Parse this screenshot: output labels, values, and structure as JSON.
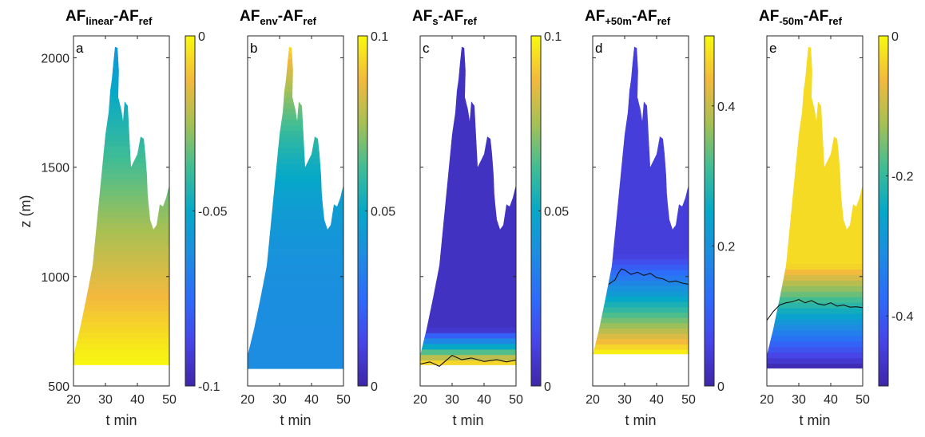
{
  "figure": {
    "ylabel": "z (m)"
  },
  "chart_data": [
    {
      "type": "heatmap",
      "panel": "a",
      "title": "AF",
      "title_sub": "linear",
      "title_tail": "-AF",
      "title_sub2": "ref",
      "xlabel": "t min",
      "ylabel": "z (m)",
      "xlim": [
        20,
        50
      ],
      "ylim": [
        500,
        2100
      ],
      "xticks": [
        20,
        30,
        40,
        50
      ],
      "yticks": [
        500,
        1000,
        1500,
        2000
      ],
      "colorbar": {
        "lim": [
          -0.1,
          0
        ],
        "ticks": [
          -0.1,
          -0.05,
          0
        ],
        "tick_labels": [
          "-0.1",
          "-0.05",
          "0"
        ]
      },
      "value_range": [
        -0.06,
        0
      ],
      "base_z": 595,
      "contour": null
    },
    {
      "type": "heatmap",
      "panel": "b",
      "title": "AF",
      "title_sub": "env",
      "title_tail": "-AF",
      "title_sub2": "ref",
      "xlabel": "t min",
      "xlim": [
        20,
        50
      ],
      "ylim": [
        500,
        2100
      ],
      "xticks": [
        20,
        30,
        40,
        50
      ],
      "yticks": [
        500,
        1000,
        1500,
        2000
      ],
      "colorbar": {
        "lim": [
          0,
          0.1
        ],
        "ticks": [
          0,
          0.05,
          0.1
        ],
        "tick_labels": [
          "0",
          "0.05",
          "0.1"
        ]
      },
      "value_range": [
        0.038,
        0.1
      ],
      "base_z": 578,
      "contour": null
    },
    {
      "type": "heatmap",
      "panel": "c",
      "title": "AF",
      "title_sub": "s",
      "title_tail": "-AF",
      "title_sub2": "ref",
      "xlabel": "t min",
      "xlim": [
        20,
        50
      ],
      "ylim": [
        500,
        2100
      ],
      "xticks": [
        20,
        30,
        40,
        50
      ],
      "yticks": [
        500,
        1000,
        1500,
        2000
      ],
      "colorbar": {
        "lim": [
          0,
          0.1
        ],
        "ticks": [
          0,
          0.05,
          0.1
        ],
        "tick_labels": [
          "0",
          "0.05",
          "0.1"
        ]
      },
      "value_range": [
        0.005,
        0.1
      ],
      "base_z": 595,
      "contour": {
        "x": [
          20,
          23,
          26,
          28,
          30,
          33,
          36,
          40,
          44,
          47,
          50
        ],
        "z": [
          600,
          610,
          590,
          615,
          640,
          620,
          628,
          612,
          620,
          610,
          618
        ]
      }
    },
    {
      "type": "heatmap",
      "panel": "d",
      "title": "AF",
      "title_sub": "+50m",
      "title_tail": "-AF",
      "title_sub2": "ref",
      "xlabel": "t min",
      "xlim": [
        20,
        50
      ],
      "ylim": [
        500,
        2100
      ],
      "xticks": [
        20,
        30,
        40,
        50
      ],
      "yticks": [
        500,
        1000,
        1500,
        2000
      ],
      "colorbar": {
        "lim": [
          0,
          0.5
        ],
        "ticks": [
          0,
          0.2,
          0.4
        ],
        "tick_labels": [
          "0",
          "0.2",
          "0.4"
        ]
      },
      "value_range": [
        0.05,
        0.5
      ],
      "base_z": 645,
      "contour": {
        "x": [
          25,
          27,
          28,
          29,
          30,
          32,
          34,
          36,
          38,
          40,
          42,
          44,
          46,
          48,
          50
        ],
        "z": [
          965,
          985,
          1015,
          1035,
          1030,
          1010,
          1020,
          1005,
          1015,
          995,
          990,
          975,
          980,
          970,
          965
        ]
      }
    },
    {
      "type": "heatmap",
      "panel": "e",
      "title": "AF",
      "title_sub": "-50m",
      "title_tail": "-AF",
      "title_sub2": "ref",
      "xlabel": "t min",
      "xlim": [
        20,
        50
      ],
      "ylim": [
        500,
        2100
      ],
      "xticks": [
        20,
        30,
        40,
        50
      ],
      "yticks": [
        500,
        1000,
        1500,
        2000
      ],
      "colorbar": {
        "lim": [
          -0.5,
          0
        ],
        "ticks": [
          -0.4,
          -0.2,
          0
        ],
        "tick_labels": [
          "-0.4",
          "-0.2",
          "0"
        ]
      },
      "value_range": [
        -0.5,
        -0.03
      ],
      "base_z": 580,
      "contour": {
        "x": [
          20,
          22,
          24,
          26,
          28,
          30,
          32,
          34,
          36,
          38,
          40,
          42,
          44,
          46,
          48,
          50
        ],
        "z": [
          800,
          840,
          870,
          880,
          885,
          895,
          880,
          890,
          875,
          870,
          880,
          865,
          870,
          860,
          862,
          858
        ]
      }
    }
  ]
}
